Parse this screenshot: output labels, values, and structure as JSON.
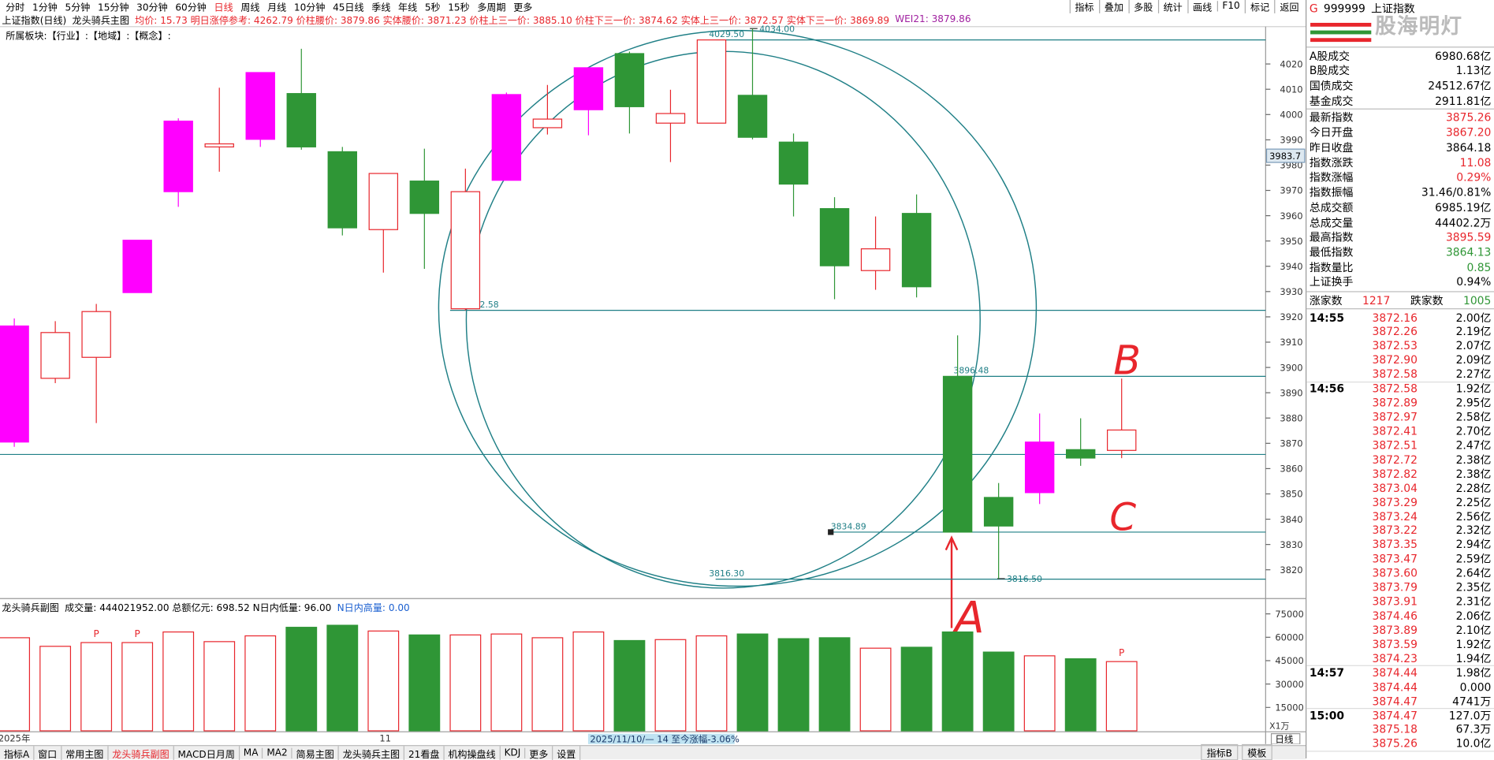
{
  "toolbar": {
    "periods": [
      "分时",
      "1分钟",
      "5分钟",
      "15分钟",
      "30分钟",
      "60分钟",
      "日线",
      "周线",
      "月线",
      "10分钟",
      "45日线",
      "季线",
      "年线",
      "5秒",
      "15秒",
      "多周期",
      "更多"
    ],
    "tools": [
      "指标",
      "叠加",
      "多股",
      "统计",
      "画线",
      "F10",
      "标记",
      "返回"
    ]
  },
  "header": {
    "title": "上证指数(日线)",
    "indicator": "龙头骑兵主图",
    "info": "均价: 15.73 明日涨停参考: 4262.79 价柱腰价: 3879.86 实体腰价: 3871.23 价柱上三一价: 3885.10 价柱下三一价: 3874.62 实体上三一价: 3872.57 实体下三一价: 3869.89",
    "wei": "WEI21: 3879.86",
    "sectors": "所属板块:【行业】:【地域】:【概念】:"
  },
  "chart_data": [
    {
      "type": "candlestick",
      "categories": [
        "2025年",
        null,
        null,
        null,
        null,
        null,
        null,
        null,
        null,
        "11",
        null,
        null,
        null,
        null,
        null,
        null,
        null,
        null,
        null,
        null,
        null,
        null,
        null,
        null,
        null,
        null,
        null,
        null
      ],
      "open": [
        3870.5,
        3895.7,
        3904.0,
        3929.6,
        3969.5,
        3987.2,
        3990.2,
        4008.3,
        3985.3,
        3954.5,
        3973.7,
        3923.2,
        3974.0,
        3994.8,
        4001.9,
        4024.1,
        3996.6,
        3996.6,
        4007.6,
        3989.1,
        3962.8,
        3938.3,
        3960.9,
        3896.48,
        3848.6,
        3850.5,
        3867.5,
        3867.2
      ],
      "high": [
        3919.4,
        3918.3,
        3925.1,
        3950.3,
        3998.5,
        4010.6,
        4016.6,
        4026.0,
        3987.2,
        3976.7,
        3986.5,
        3978.6,
        4008.7,
        4011.7,
        4018.5,
        4024.9,
        4009.8,
        4029.5,
        4034.0,
        3992.5,
        3967.3,
        3959.7,
        3968.4,
        3912.7,
        3854.3,
        3881.8,
        3879.9,
        3895.59
      ],
      "low": [
        3868.6,
        3893.8,
        3878.0,
        3929.6,
        3963.5,
        3977.4,
        3987.2,
        3986.1,
        3952.2,
        3937.5,
        3939.0,
        3922.58,
        3974.0,
        3992.1,
        3991.8,
        3992.5,
        3981.2,
        3996.6,
        3990.2,
        3959.7,
        3927.0,
        3930.7,
        3927.7,
        3834.89,
        3816.5,
        3846.0,
        3861.1,
        3864.13
      ],
      "close": [
        3916.4,
        3913.8,
        3922.1,
        3950.3,
        3997.4,
        3988.4,
        4016.6,
        3987.2,
        3955.2,
        3976.7,
        3960.9,
        3969.5,
        4007.9,
        3998.2,
        4018.5,
        4003.1,
        4000.4,
        4029.5,
        3991.0,
        3972.5,
        3940.2,
        3946.9,
        3931.9,
        3834.89,
        3837.3,
        3870.5,
        3864.18,
        3875.26
      ],
      "colors": [
        "#ff00ff",
        "#e8262c",
        "#e8262c",
        "#ff00ff",
        "#ff00ff",
        "#e8262c",
        "#ff00ff",
        "#2f9636",
        "#2f9636",
        "#e8262c",
        "#2f9636",
        "#e8262c",
        "#ff00ff",
        "#e8262c",
        "#ff00ff",
        "#2f9636",
        "#e8262c",
        "#e8262c",
        "#2f9636",
        "#2f9636",
        "#2f9636",
        "#e8262c",
        "#2f9636",
        "#2f9636",
        "#2f9636",
        "#ff00ff",
        "#2f9636",
        "#e8262c"
      ],
      "hollow_color": "#e8262c",
      "ylim": [
        3809,
        4034
      ],
      "yticks": [
        3820,
        3830,
        3840,
        3850,
        3860,
        3870,
        3880,
        3890,
        3900,
        3910,
        3920,
        3930,
        3940,
        3950,
        3960,
        3970,
        3980,
        3990,
        4000,
        4010,
        4020
      ],
      "hlines": [
        {
          "value": 4029.5,
          "label": "4029.50"
        },
        {
          "value": 4034,
          "label": "4034.00"
        },
        3922.58,
        3896.48,
        3834.89,
        {
          "value": 3816.3,
          "label": "3816.30"
        },
        {
          "value": 3816.5,
          "label": "3816.50"
        }
      ],
      "ref_line": 3865.6,
      "line_color": "#1f7f86",
      "cursor_label": 3983.7,
      "range_label": "2025/11/10/— 14 至今涨幅-3.06%",
      "period_label": "日线",
      "annotations": [
        "B",
        "C",
        "A"
      ]
    },
    {
      "type": "bar",
      "title": "龙头骑兵副图",
      "info": "成交量: 444021952.00 总额亿元: 698.52 N日内低量: 96.00",
      "info2": "N日内高量: 0.00",
      "values": [
        59700,
        54200,
        56600,
        56600,
        63400,
        57200,
        60900,
        66400,
        67700,
        64000,
        61500,
        61500,
        62100,
        59700,
        63400,
        57900,
        58500,
        60900,
        62100,
        59100,
        59700,
        53000,
        53600,
        63400,
        50500,
        48100,
        46200,
        44402
      ],
      "colors": [
        "#e8262c",
        "#e8262c",
        "#e8262c",
        "#e8262c",
        "#e8262c",
        "#e8262c",
        "#e8262c",
        "#2f9636",
        "#2f9636",
        "#e8262c",
        "#2f9636",
        "#e8262c",
        "#e8262c",
        "#e8262c",
        "#e8262c",
        "#2f9636",
        "#e8262c",
        "#e8262c",
        "#2f9636",
        "#2f9636",
        "#2f9636",
        "#e8262c",
        "#2f9636",
        "#2f9636",
        "#2f9636",
        "#e8262c",
        "#2f9636",
        "#e8262c"
      ],
      "hollow_color": "#e8262c",
      "ylim": [
        0,
        83000
      ],
      "yticks": [
        15000,
        30000,
        45000,
        60000,
        75000
      ],
      "unit": "X1万",
      "markers": [
        {
          "index": 2,
          "label": "P"
        },
        {
          "index": 3,
          "label": "P"
        },
        {
          "index": 27,
          "label": "P"
        }
      ]
    }
  ],
  "bottom_tabs": {
    "left": [
      "指标A",
      "窗口",
      "常用主图",
      "龙头骑兵副图",
      "MACD日月周",
      "MA",
      "MA2",
      "简易主图",
      "龙头骑兵主图",
      "21看盘",
      "机构操盘线",
      "KDJ",
      "更多",
      "设置"
    ],
    "right": [
      "指标B",
      "模板"
    ]
  },
  "quote_panel": {
    "marker": "G",
    "code": "999999",
    "name": "上证指数",
    "watermark": "股海明灯",
    "stats": [
      {
        "label": "A股成交",
        "value": "6980.68亿",
        "color": "#000000"
      },
      {
        "label": "B股成交",
        "value": "1.13亿",
        "color": "#000000"
      },
      {
        "label": "国债成交",
        "value": "24512.67亿",
        "color": "#000000"
      },
      {
        "label": "基金成交",
        "value": "2911.81亿",
        "color": "#000000"
      },
      {
        "label": "最新指数",
        "value": "3875.26",
        "color": "#e8262c"
      },
      {
        "label": "今日开盘",
        "value": "3867.20",
        "color": "#e8262c"
      },
      {
        "label": "昨日收盘",
        "value": "3864.18",
        "color": "#000000"
      },
      {
        "label": "指数涨跌",
        "value": "11.08",
        "color": "#e8262c"
      },
      {
        "label": "指数涨幅",
        "value": "0.29%",
        "color": "#e8262c"
      },
      {
        "label": "指数振幅",
        "value": "31.46/0.81%",
        "color": "#000000"
      },
      {
        "label": "总成交额",
        "value": "6985.19亿",
        "color": "#000000"
      },
      {
        "label": "总成交量",
        "value": "44402.2万",
        "color": "#000000"
      },
      {
        "label": "最高指数",
        "value": "3895.59",
        "color": "#e8262c"
      },
      {
        "label": "最低指数",
        "value": "3864.13",
        "color": "#2f9636"
      },
      {
        "label": "指数量比",
        "value": "0.85",
        "color": "#2f9636"
      },
      {
        "label": "上证换手",
        "value": "0.94%",
        "color": "#000000"
      }
    ],
    "breadth": {
      "up_label": "涨家数",
      "up": "1217",
      "down_label": "跌家数",
      "down": "1005"
    },
    "trades": [
      {
        "time": "14:55",
        "rows": [
          [
            "3872.16",
            "2.00亿"
          ],
          [
            "3872.26",
            "2.19亿"
          ],
          [
            "3872.53",
            "2.07亿"
          ],
          [
            "3872.90",
            "2.09亿"
          ],
          [
            "3872.58",
            "2.27亿"
          ]
        ]
      },
      {
        "time": "14:56",
        "rows": [
          [
            "3872.58",
            "1.92亿"
          ],
          [
            "3872.89",
            "2.95亿"
          ],
          [
            "3872.97",
            "2.58亿"
          ],
          [
            "3872.41",
            "2.70亿"
          ],
          [
            "3872.51",
            "2.47亿"
          ],
          [
            "3872.72",
            "2.38亿"
          ],
          [
            "3872.82",
            "2.38亿"
          ],
          [
            "3873.04",
            "2.28亿"
          ],
          [
            "3873.29",
            "2.25亿"
          ],
          [
            "3873.24",
            "2.56亿"
          ],
          [
            "3873.22",
            "2.32亿"
          ],
          [
            "3873.35",
            "2.94亿"
          ],
          [
            "3873.47",
            "2.59亿"
          ],
          [
            "3873.60",
            "2.64亿"
          ],
          [
            "3873.79",
            "2.35亿"
          ],
          [
            "3873.91",
            "2.31亿"
          ],
          [
            "3874.46",
            "2.06亿"
          ],
          [
            "3873.89",
            "2.10亿"
          ],
          [
            "3873.59",
            "1.92亿"
          ],
          [
            "3874.23",
            "1.94亿"
          ]
        ]
      },
      {
        "time": "14:57",
        "rows": [
          [
            "3874.44",
            "1.98亿"
          ],
          [
            "3874.44",
            "0.000"
          ],
          [
            "3874.47",
            "4741万"
          ]
        ]
      },
      {
        "time": "15:00",
        "rows": [
          [
            "3874.47",
            "127.0万"
          ],
          [
            "3875.18",
            "67.3万"
          ],
          [
            "3875.26",
            "10.0亿"
          ]
        ]
      }
    ]
  }
}
